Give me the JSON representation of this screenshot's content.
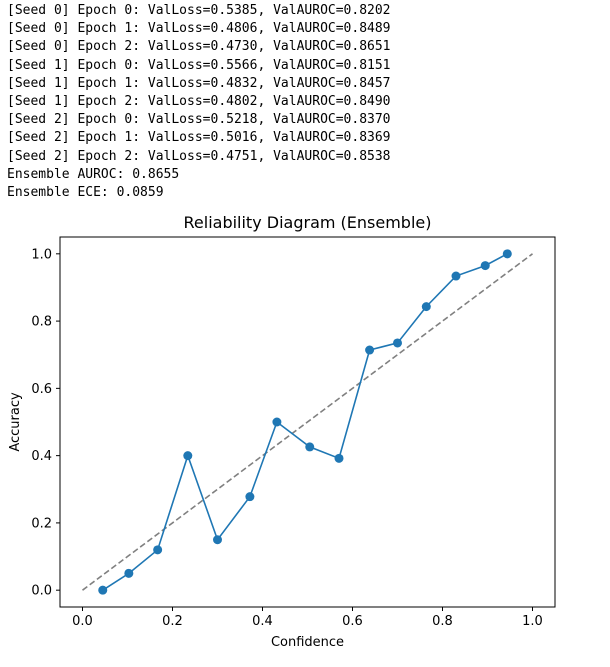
{
  "console": {
    "lines": [
      "[Seed 0] Epoch 0: ValLoss=0.5385, ValAUROC=0.8202",
      "[Seed 0] Epoch 1: ValLoss=0.4806, ValAUROC=0.8489",
      "[Seed 0] Epoch 2: ValLoss=0.4730, ValAUROC=0.8651",
      "[Seed 1] Epoch 0: ValLoss=0.5566, ValAUROC=0.8151",
      "[Seed 1] Epoch 1: ValLoss=0.4832, ValAUROC=0.8457",
      "[Seed 1] Epoch 2: ValLoss=0.4802, ValAUROC=0.8490",
      "[Seed 2] Epoch 0: ValLoss=0.5218, ValAUROC=0.8370",
      "[Seed 2] Epoch 1: ValLoss=0.5016, ValAUROC=0.8369",
      "[Seed 2] Epoch 2: ValLoss=0.4751, ValAUROC=0.8538",
      "Ensemble AUROC: 0.8655",
      "Ensemble ECE: 0.0859"
    ]
  },
  "chart_data": {
    "type": "line",
    "title": "Reliability Diagram (Ensemble)",
    "xlabel": "Confidence",
    "ylabel": "Accuracy",
    "xlim": [
      -0.05,
      1.05
    ],
    "ylim": [
      -0.05,
      1.05
    ],
    "xticks": [
      0.0,
      0.2,
      0.4,
      0.6,
      0.8,
      1.0
    ],
    "yticks": [
      0.0,
      0.2,
      0.4,
      0.6,
      0.8,
      1.0
    ],
    "xtick_labels": [
      "0.0",
      "0.2",
      "0.4",
      "0.6",
      "0.8",
      "1.0"
    ],
    "ytick_labels": [
      "0.0",
      "0.2",
      "0.4",
      "0.6",
      "0.8",
      "1.0"
    ],
    "grid": false,
    "series": [
      {
        "color": "#1f77b4",
        "marker": "circle",
        "line_style": "solid",
        "x": [
          0.045,
          0.103,
          0.167,
          0.234,
          0.3,
          0.372,
          0.432,
          0.505,
          0.57,
          0.638,
          0.7,
          0.764,
          0.83,
          0.895,
          0.944
        ],
        "y": [
          0.0,
          0.05,
          0.12,
          0.4,
          0.15,
          0.278,
          0.5,
          0.426,
          0.392,
          0.714,
          0.735,
          0.843,
          0.934,
          0.965,
          1.0
        ]
      },
      {
        "color": "#808080",
        "line_style": "dashed",
        "x": [
          0.0,
          1.0
        ],
        "y": [
          0.0,
          1.0
        ]
      }
    ]
  }
}
